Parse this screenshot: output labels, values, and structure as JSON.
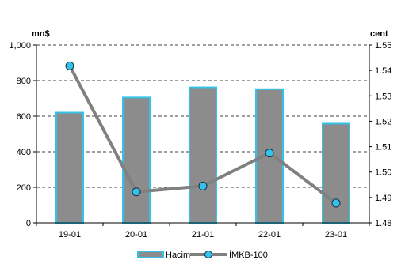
{
  "chart_data": {
    "type": "bar",
    "categories": [
      "19-01",
      "20-01",
      "21-01",
      "22-01",
      "23-01"
    ],
    "series": [
      {
        "name": "Hacim",
        "type": "bar",
        "axis": "left",
        "values": [
          620,
          705,
          762,
          752,
          558
        ],
        "color": "#8c8c8c",
        "border_color": "#33c3e8"
      },
      {
        "name": "İMKB-100",
        "type": "line",
        "axis": "right",
        "values": [
          1.5418,
          1.4922,
          1.4945,
          1.5075,
          1.4878
        ],
        "color": "#808080",
        "marker_color": "#33c3e8"
      }
    ],
    "y_left": {
      "label": "mn$",
      "ylim": [
        0,
        1000
      ],
      "ticks": [
        0,
        200,
        400,
        600,
        800,
        1000
      ],
      "tick_labels": [
        "0",
        "200",
        "400",
        "600",
        "800",
        "1,000"
      ]
    },
    "y_right": {
      "label": "cent",
      "ylim": [
        1.48,
        1.55
      ],
      "ticks": [
        1.48,
        1.49,
        1.5,
        1.51,
        1.52,
        1.53,
        1.54,
        1.55
      ],
      "tick_labels": [
        "1.48",
        "1.49",
        "1.50",
        "1.51",
        "1.52",
        "1.53",
        "1.54",
        "1.55"
      ]
    },
    "grid": "dashed-horizontal",
    "legend": "bottom-center"
  }
}
